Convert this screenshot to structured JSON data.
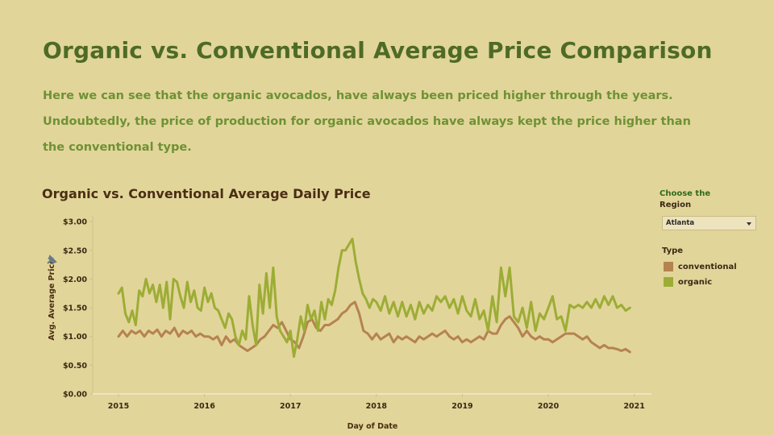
{
  "page": {
    "title": "Organic vs. Conventional Average Price Comparison",
    "description": [
      "Here we can see that the organic avocados, have always been priced higher through the years.",
      "Undoubtedly, the price of production for organic avocados have always kept the price higher than",
      "the conventional type."
    ]
  },
  "filter": {
    "label_line1": "Choose the",
    "label_line2": "Region",
    "selected": "Atlanta"
  },
  "colors": {
    "background": "#e2d59a",
    "conventional": "#b5834f",
    "organic": "#9cad35"
  },
  "chart_data": {
    "type": "line",
    "title": "Organic vs. Conventional Average Daily Price",
    "xlabel": "Day of Date",
    "ylabel": "Avg. Average Price",
    "x_ticks": [
      "2015",
      "2016",
      "2017",
      "2018",
      "2019",
      "2020",
      "2021"
    ],
    "y_ticks": [
      "$0.00",
      "$0.50",
      "$1.00",
      "$1.50",
      "$2.00",
      "$2.50",
      "$3.00"
    ],
    "xlim": [
      2014.7,
      2021.2
    ],
    "ylim": [
      0,
      3.1
    ],
    "legend_title": "Type",
    "legend_position": "right",
    "series": [
      {
        "name": "conventional",
        "x": [
          2015.0,
          2015.05,
          2015.1,
          2015.15,
          2015.2,
          2015.25,
          2015.3,
          2015.35,
          2015.4,
          2015.45,
          2015.5,
          2015.55,
          2015.6,
          2015.65,
          2015.7,
          2015.75,
          2015.8,
          2015.85,
          2015.9,
          2015.95,
          2016.0,
          2016.05,
          2016.1,
          2016.15,
          2016.2,
          2016.25,
          2016.3,
          2016.35,
          2016.4,
          2016.45,
          2016.5,
          2016.55,
          2016.6,
          2016.65,
          2016.7,
          2016.75,
          2016.8,
          2016.85,
          2016.9,
          2016.95,
          2017.0,
          2017.05,
          2017.1,
          2017.15,
          2017.2,
          2017.25,
          2017.3,
          2017.35,
          2017.4,
          2017.45,
          2017.5,
          2017.55,
          2017.6,
          2017.65,
          2017.7,
          2017.75,
          2017.8,
          2017.85,
          2017.9,
          2017.95,
          2018.0,
          2018.05,
          2018.1,
          2018.15,
          2018.2,
          2018.25,
          2018.3,
          2018.35,
          2018.4,
          2018.45,
          2018.5,
          2018.55,
          2018.6,
          2018.65,
          2018.7,
          2018.75,
          2018.8,
          2018.85,
          2018.9,
          2018.95,
          2019.0,
          2019.05,
          2019.1,
          2019.15,
          2019.2,
          2019.25,
          2019.3,
          2019.35,
          2019.4,
          2019.45,
          2019.5,
          2019.55,
          2019.6,
          2019.65,
          2019.7,
          2019.75,
          2019.8,
          2019.85,
          2019.9,
          2019.95,
          2020.0,
          2020.05,
          2020.1,
          2020.15,
          2020.2,
          2020.25,
          2020.3,
          2020.35,
          2020.4,
          2020.45,
          2020.5,
          2020.55,
          2020.6,
          2020.65,
          2020.7,
          2020.75,
          2020.8,
          2020.85,
          2020.9,
          2020.95
        ],
        "y": [
          1.0,
          1.1,
          1.0,
          1.1,
          1.05,
          1.1,
          1.0,
          1.1,
          1.05,
          1.12,
          1.0,
          1.1,
          1.05,
          1.15,
          1.0,
          1.1,
          1.05,
          1.1,
          1.0,
          1.05,
          1.0,
          1.0,
          0.95,
          1.0,
          0.85,
          1.0,
          0.9,
          0.95,
          0.85,
          0.8,
          0.75,
          0.8,
          0.85,
          0.95,
          1.0,
          1.1,
          1.2,
          1.15,
          1.25,
          1.1,
          0.95,
          0.9,
          0.8,
          1.0,
          1.25,
          1.3,
          1.15,
          1.1,
          1.2,
          1.2,
          1.25,
          1.3,
          1.4,
          1.45,
          1.55,
          1.6,
          1.4,
          1.1,
          1.05,
          0.95,
          1.05,
          0.95,
          1.0,
          1.05,
          0.9,
          1.0,
          0.95,
          1.0,
          0.95,
          0.9,
          1.0,
          0.95,
          1.0,
          1.05,
          1.0,
          1.05,
          1.1,
          1.0,
          0.95,
          1.0,
          0.9,
          0.95,
          0.9,
          0.95,
          1.0,
          0.95,
          1.1,
          1.05,
          1.05,
          1.2,
          1.3,
          1.35,
          1.25,
          1.15,
          1.0,
          1.1,
          1.0,
          0.95,
          1.0,
          0.95,
          0.95,
          0.9,
          0.95,
          1.0,
          1.05,
          1.05,
          1.05,
          1.0,
          0.95,
          1.0,
          0.9,
          0.85,
          0.8,
          0.85,
          0.8,
          0.8,
          0.78,
          0.75,
          0.78,
          0.73
        ]
      },
      {
        "name": "organic",
        "x": [
          2015.0,
          2015.04,
          2015.08,
          2015.12,
          2015.16,
          2015.2,
          2015.24,
          2015.28,
          2015.32,
          2015.36,
          2015.4,
          2015.44,
          2015.48,
          2015.52,
          2015.56,
          2015.6,
          2015.64,
          2015.68,
          2015.72,
          2015.76,
          2015.8,
          2015.84,
          2015.88,
          2015.92,
          2015.96,
          2016.0,
          2016.04,
          2016.08,
          2016.12,
          2016.16,
          2016.2,
          2016.24,
          2016.28,
          2016.32,
          2016.36,
          2016.4,
          2016.44,
          2016.48,
          2016.52,
          2016.56,
          2016.6,
          2016.64,
          2016.68,
          2016.72,
          2016.76,
          2016.8,
          2016.84,
          2016.88,
          2016.92,
          2016.96,
          2017.0,
          2017.04,
          2017.08,
          2017.12,
          2017.16,
          2017.2,
          2017.24,
          2017.28,
          2017.32,
          2017.36,
          2017.4,
          2017.44,
          2017.48,
          2017.52,
          2017.56,
          2017.6,
          2017.64,
          2017.68,
          2017.72,
          2017.76,
          2017.8,
          2017.84,
          2017.88,
          2017.92,
          2017.96,
          2018.0,
          2018.05,
          2018.1,
          2018.15,
          2018.2,
          2018.25,
          2018.3,
          2018.35,
          2018.4,
          2018.45,
          2018.5,
          2018.55,
          2018.6,
          2018.65,
          2018.7,
          2018.75,
          2018.8,
          2018.85,
          2018.9,
          2018.95,
          2019.0,
          2019.05,
          2019.1,
          2019.15,
          2019.2,
          2019.25,
          2019.3,
          2019.35,
          2019.4,
          2019.45,
          2019.5,
          2019.55,
          2019.6,
          2019.65,
          2019.7,
          2019.75,
          2019.8,
          2019.85,
          2019.9,
          2019.95,
          2020.0,
          2020.05,
          2020.1,
          2020.15,
          2020.2,
          2020.25,
          2020.3,
          2020.35,
          2020.4,
          2020.45,
          2020.5,
          2020.55,
          2020.6,
          2020.65,
          2020.7,
          2020.75,
          2020.8,
          2020.85,
          2020.9,
          2020.95
        ],
        "y": [
          1.75,
          1.85,
          1.4,
          1.25,
          1.45,
          1.2,
          1.8,
          1.7,
          2.0,
          1.75,
          1.9,
          1.6,
          1.9,
          1.5,
          1.95,
          1.3,
          2.0,
          1.95,
          1.7,
          1.5,
          1.95,
          1.6,
          1.8,
          1.5,
          1.45,
          1.85,
          1.6,
          1.75,
          1.5,
          1.45,
          1.3,
          1.15,
          1.4,
          1.3,
          1.0,
          0.85,
          1.1,
          0.95,
          1.7,
          1.2,
          0.85,
          1.9,
          1.4,
          2.1,
          1.5,
          2.2,
          1.35,
          1.1,
          1.0,
          0.9,
          1.1,
          0.65,
          0.95,
          1.35,
          1.1,
          1.55,
          1.3,
          1.45,
          1.1,
          1.6,
          1.3,
          1.65,
          1.55,
          1.8,
          2.2,
          2.5,
          2.5,
          2.6,
          2.7,
          2.3,
          2.0,
          1.75,
          1.65,
          1.5,
          1.65,
          1.6,
          1.45,
          1.7,
          1.4,
          1.6,
          1.35,
          1.6,
          1.35,
          1.55,
          1.3,
          1.6,
          1.4,
          1.55,
          1.45,
          1.7,
          1.6,
          1.7,
          1.5,
          1.65,
          1.4,
          1.7,
          1.45,
          1.35,
          1.65,
          1.3,
          1.45,
          1.1,
          1.7,
          1.25,
          2.2,
          1.7,
          2.2,
          1.35,
          1.25,
          1.5,
          1.15,
          1.6,
          1.1,
          1.4,
          1.3,
          1.5,
          1.7,
          1.3,
          1.35,
          1.1,
          1.55,
          1.5,
          1.55,
          1.5,
          1.6,
          1.5,
          1.65,
          1.5,
          1.7,
          1.55,
          1.7,
          1.5,
          1.55,
          1.45,
          1.5
        ]
      }
    ]
  }
}
